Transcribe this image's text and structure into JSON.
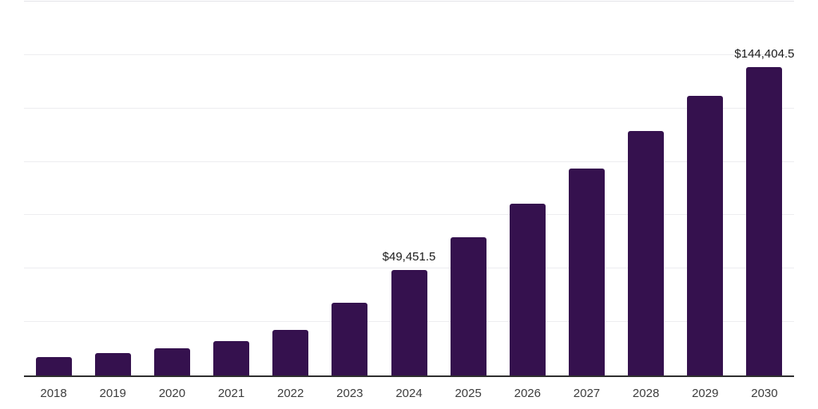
{
  "chart_data": {
    "type": "bar",
    "title": "",
    "xlabel": "",
    "ylabel": "",
    "categories": [
      "2018",
      "2019",
      "2020",
      "2021",
      "2022",
      "2023",
      "2024",
      "2025",
      "2026",
      "2027",
      "2028",
      "2029",
      "2030"
    ],
    "values": [
      8500,
      10500,
      12700,
      16200,
      21200,
      34000,
      49451.5,
      64600,
      80300,
      96800,
      114400,
      131000,
      144404.5
    ],
    "data_labels": [
      {
        "category": "2024",
        "text": "$49,451.5"
      },
      {
        "category": "2030",
        "text": "$144,404.5"
      }
    ],
    "ylim": [
      0,
      175000
    ],
    "gridline_interval": 25000,
    "grid": true,
    "legend": "none",
    "y_axis_tick_labels": "none",
    "bar_color": "#35114e",
    "axis_line_color": "#2f2f2f",
    "gridline_color": "#ededf0",
    "data_label_color": "#1a1a1a",
    "tick_label_color": "#3d3d3d",
    "background_color": "#ffffff"
  }
}
